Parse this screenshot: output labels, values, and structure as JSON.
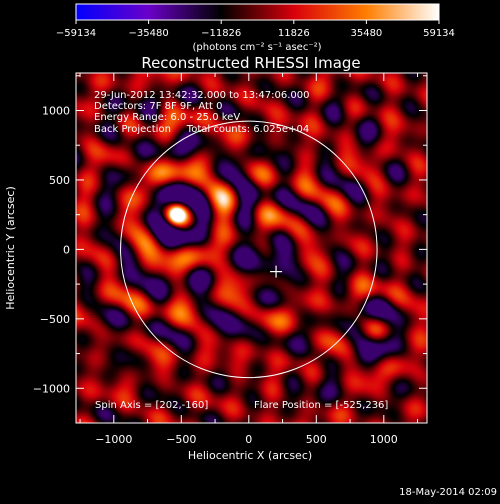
{
  "colorbar": {
    "ticks": [
      -59134,
      -35480,
      -11826,
      11826,
      35480,
      59134
    ],
    "tick_labels": [
      "−59134",
      "−35480",
      "−11826",
      "11826",
      "35480",
      "59134"
    ],
    "units": "(photons cm⁻² s⁻¹ asec⁻²)",
    "range": [
      -59134,
      59134
    ],
    "colors": [
      "#0000ff",
      "#6a00c8",
      "#000000",
      "#d8000b",
      "#ff7e00",
      "#ffffff"
    ]
  },
  "chart_data": {
    "type": "heatmap",
    "title": "Reconstructed RHESSI Image",
    "xlabel": "Heliocentric X (arcsec)",
    "ylabel": "Heliocentric Y (arcsec)",
    "xlim": [
      -1280,
      1320
    ],
    "ylim": [
      -1250,
      1270
    ],
    "xticks": [
      -1000,
      -500,
      0,
      500,
      1000
    ],
    "xtick_labels": [
      "−1000",
      "−500",
      "0",
      "500",
      "1000"
    ],
    "yticks": [
      -1000,
      -500,
      0,
      500,
      1000
    ],
    "ytick_labels": [
      "−1000",
      "−500",
      "0",
      "500",
      "1000"
    ],
    "annotations": [
      "29-Jun-2012 13:42:32.000 to 13:47:06.000",
      "Detectors: 7F 8F 9F, Att 0",
      "Energy Range: 6.0 - 25.0 keV",
      "Back Projection     Total counts: 6.025e+04"
    ],
    "spin_axis_label": "Spin Axis = [202,-160]",
    "flare_position_label": "Flare Position = [-525,236]",
    "solar_disk": {
      "center": [
        0,
        0
      ],
      "radius": 950
    },
    "spin_axis": [
      202,
      -160
    ],
    "bright_source": {
      "x": -535,
      "y": 250,
      "intensity": 59134
    },
    "features": [
      {
        "x": -520,
        "y": 240,
        "r": 250,
        "v": 0.55
      },
      {
        "x": -530,
        "y": 250,
        "r": 430,
        "v": 0.45
      },
      {
        "x": -520,
        "y": 240,
        "r": 720,
        "v": 0.5
      },
      {
        "x": 170,
        "y": -10,
        "r": 170,
        "v": 0.6
      },
      {
        "x": 200,
        "y": -160,
        "r": 420,
        "v": 0.5
      },
      {
        "x": 150,
        "y": -170,
        "r": 780,
        "v": 0.45
      },
      {
        "x": 930,
        "y": -590,
        "r": 140,
        "v": 0.75
      },
      {
        "x": 930,
        "y": -590,
        "r": 320,
        "v": 0.5
      },
      {
        "x": 500,
        "y": -950,
        "r": 260,
        "v": 0.4
      },
      {
        "x": -900,
        "y": 950,
        "r": 300,
        "v": 0.45
      },
      {
        "x": 780,
        "y": 960,
        "r": 380,
        "v": 0.4
      },
      {
        "x": -1000,
        "y": -680,
        "r": 420,
        "v": 0.35
      },
      {
        "x": -160,
        "y": -520,
        "r": 260,
        "v": 0.45
      },
      {
        "x": 60,
        "y": 560,
        "r": 300,
        "v": 0.4
      },
      {
        "x": 0,
        "y": 0,
        "r": 1200,
        "v": 0.35
      }
    ]
  },
  "footer": {
    "timestamp": "18-May-2014 02:09"
  }
}
